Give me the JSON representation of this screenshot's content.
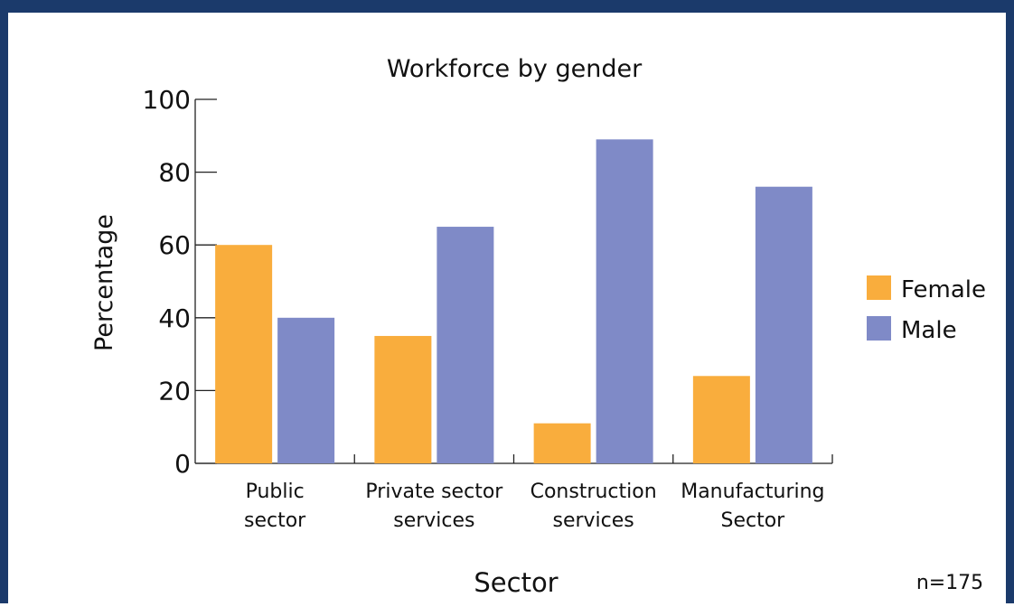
{
  "chart_data": {
    "type": "bar",
    "title": "Workforce by gender",
    "xlabel": "Sector",
    "ylabel": "Percentage",
    "note": "n=175",
    "categories": [
      [
        "Public",
        "sector"
      ],
      [
        "Private sector",
        "services"
      ],
      [
        "Construction",
        "services"
      ],
      [
        "Manufacturing",
        "Sector"
      ]
    ],
    "series": [
      {
        "name": "Female",
        "color": "#f9ad3d",
        "values": [
          60,
          35,
          11,
          24
        ]
      },
      {
        "name": "Male",
        "color": "#7f8ac7",
        "values": [
          40,
          65,
          89,
          76
        ]
      }
    ],
    "ylim": [
      0,
      100
    ],
    "yticks": [
      "0",
      "20",
      "40",
      "60",
      "80",
      "100"
    ],
    "grid": false,
    "legend_position": "right"
  }
}
